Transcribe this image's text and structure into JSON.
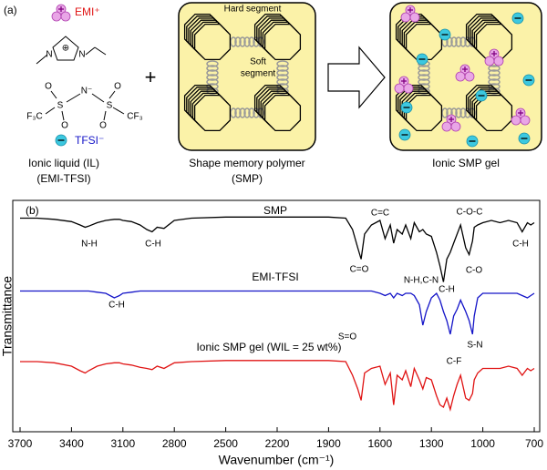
{
  "panel_a": {
    "label": "(a)",
    "emi": "EMI⁺",
    "tfsi": "TFSI⁻",
    "plus": "+",
    "emi_atoms": [
      "N",
      "N",
      "⊕"
    ],
    "tfsi_atoms": [
      "F₃C",
      "S",
      "N⁻",
      "S",
      "CF₃",
      "O",
      "O",
      "O",
      "O"
    ],
    "ionic_liquid": [
      "Ionic liquid (IL)",
      "(EMI-TFSI)"
    ],
    "smp": [
      "Shape memory polymer",
      "(SMP)"
    ],
    "gel": "Ionic SMP gel",
    "hard_segment": "Hard segment",
    "soft_segment": [
      "Soft",
      "segment"
    ]
  },
  "chart_data": {
    "type": "line",
    "panel_label": "(b)",
    "x_label": "Wavenumber (cm⁻¹)",
    "y_label": "Transmittance",
    "x": [
      3700,
      3600,
      3500,
      3400,
      3350,
      3320,
      3300,
      3250,
      3200,
      3150,
      3120,
      3100,
      3050,
      3000,
      2960,
      2930,
      2900,
      2860,
      2800,
      2700,
      2500,
      2300,
      2100,
      1900,
      1800,
      1760,
      1730,
      1710,
      1690,
      1650,
      1600,
      1570,
      1540,
      1520,
      1500,
      1470,
      1450,
      1420,
      1400,
      1370,
      1350,
      1330,
      1300,
      1270,
      1250,
      1230,
      1210,
      1190,
      1170,
      1150,
      1130,
      1100,
      1080,
      1060,
      1050,
      1030,
      1000,
      950,
      900,
      850,
      800,
      770,
      740,
      720,
      700
    ],
    "series": [
      {
        "name": "SMP",
        "color": "#000000",
        "values": [
          93,
          93,
          92.5,
          91.5,
          90,
          89,
          89.5,
          91,
          92,
          92.5,
          92.5,
          92,
          91.5,
          90,
          88,
          87,
          89,
          88.5,
          92,
          93,
          93.5,
          93.5,
          93.5,
          93.5,
          93,
          88,
          80,
          75,
          86,
          90,
          92,
          84,
          90,
          82,
          88,
          86,
          90,
          84,
          91,
          87,
          88,
          86,
          85,
          78,
          72,
          65,
          75,
          78,
          82,
          86,
          90,
          80,
          77,
          83,
          89,
          90,
          91,
          92,
          91,
          92,
          91,
          87,
          91,
          90,
          91
        ]
      },
      {
        "name": "EMI-TFSI",
        "color": "#1414c8",
        "values": [
          61,
          61,
          61,
          61,
          61,
          61,
          61,
          60.5,
          60,
          58,
          59,
          60,
          60.5,
          61,
          61,
          61,
          61,
          61,
          61,
          61,
          61,
          61,
          61,
          61,
          61,
          61,
          61,
          61,
          61,
          61,
          60,
          59,
          60,
          58,
          60,
          59,
          60,
          60,
          59,
          55,
          46,
          52,
          58,
          60,
          57,
          52,
          48,
          42,
          50,
          53,
          57,
          52,
          48,
          42,
          50,
          58,
          60,
          60,
          60,
          60,
          60,
          59,
          58,
          59,
          60
        ]
      },
      {
        "name": "Ionic SMP gel (WIL = 25 wt%)",
        "color": "#e01414",
        "values": [
          30,
          30,
          29.5,
          28,
          26,
          25,
          26,
          28,
          29,
          29.5,
          29.5,
          29,
          28.5,
          27.5,
          27,
          26.5,
          28,
          27,
          29.5,
          30,
          30.5,
          30.5,
          30.5,
          30.5,
          30,
          24,
          18,
          13,
          25,
          27,
          28,
          20,
          25,
          11,
          24,
          22,
          26,
          19,
          27,
          22,
          18,
          23,
          22,
          15,
          11,
          10,
          14,
          9,
          15,
          20,
          24,
          14,
          13,
          16,
          22,
          25,
          27,
          27,
          27,
          28,
          27,
          24,
          27,
          26,
          27
        ]
      }
    ],
    "annotations": [
      "N-H",
      "C-H",
      "C=C",
      "C=O",
      "N-H,C-N",
      "C-O-C",
      "C-H",
      "C-O",
      "C-H",
      "C-H",
      "S=O",
      "C-F",
      "S-N"
    ],
    "xlim": [
      3700,
      700
    ],
    "ylim": [
      0,
      100
    ],
    "xticks": [
      3700,
      3400,
      3100,
      2800,
      2500,
      2200,
      1900,
      1600,
      1300,
      1000,
      700
    ],
    "grid": false
  }
}
